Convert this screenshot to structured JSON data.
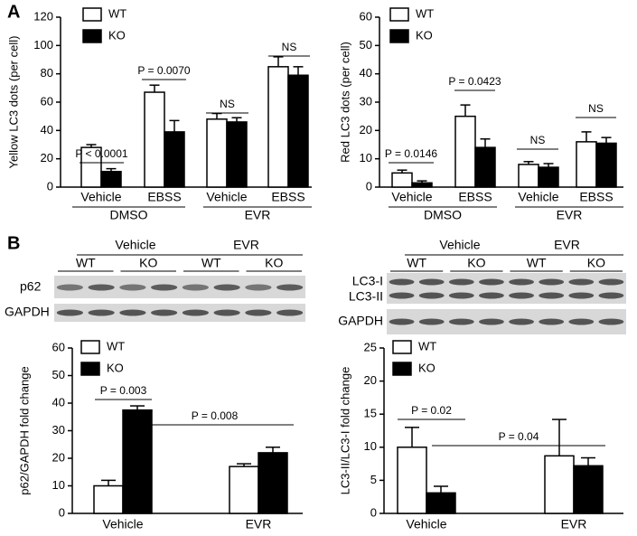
{
  "panel_labels": [
    "A",
    "B"
  ],
  "chart_data": [
    {
      "type": "bar",
      "ylabel": "Yellow LC3 dots (per cell)",
      "categories": [
        "Vehicle",
        "EBSS",
        "Vehicle",
        "EBSS"
      ],
      "groups": [
        "DMSO",
        "EVR"
      ],
      "ylim": [
        0,
        120
      ],
      "yticks": [
        0,
        20,
        40,
        60,
        80,
        100,
        120
      ],
      "series": [
        {
          "name": "WT",
          "color": "#ffffff",
          "values": [
            28,
            67,
            48,
            85
          ],
          "errors": [
            2,
            5,
            4,
            7
          ]
        },
        {
          "name": "KO",
          "color": "#000000",
          "values": [
            11,
            39,
            46,
            79
          ],
          "errors": [
            2,
            8,
            3,
            6
          ]
        }
      ],
      "annotations": [
        "P < 0.0001",
        "P = 0.0070",
        "NS",
        "NS"
      ]
    },
    {
      "type": "bar",
      "ylabel": "Red LC3 dots (per cell)",
      "categories": [
        "Vehicle",
        "EBSS",
        "Vehicle",
        "EBSS"
      ],
      "groups": [
        "DMSO",
        "EVR"
      ],
      "ylim": [
        0,
        60
      ],
      "yticks": [
        0,
        10,
        20,
        30,
        40,
        50,
        60
      ],
      "series": [
        {
          "name": "WT",
          "color": "#ffffff",
          "values": [
            5,
            25,
            8,
            16
          ],
          "errors": [
            1,
            4,
            1,
            3.5
          ]
        },
        {
          "name": "KO",
          "color": "#000000",
          "values": [
            1.5,
            14,
            7,
            15.5
          ],
          "errors": [
            0.7,
            3,
            1.3,
            2
          ]
        }
      ],
      "annotations": [
        "P = 0.0146",
        "P = 0.0423",
        "NS",
        "NS"
      ]
    },
    {
      "type": "bar",
      "ylabel": "p62/GAPDH fold change",
      "categories": [
        "Vehicle",
        "EVR"
      ],
      "ylim": [
        0,
        60
      ],
      "yticks": [
        0,
        10,
        20,
        30,
        40,
        50,
        60
      ],
      "series": [
        {
          "name": "WT",
          "color": "#ffffff",
          "values": [
            10,
            17
          ],
          "errors": [
            2,
            1
          ]
        },
        {
          "name": "KO",
          "color": "#000000",
          "values": [
            37.5,
            22
          ],
          "errors": [
            1.5,
            2
          ]
        }
      ],
      "annotations": [
        "P = 0.003",
        "P = 0.008"
      ]
    },
    {
      "type": "bar",
      "ylabel": "LC3-II/LC3-I fold change",
      "categories": [
        "Vehicle",
        "EVR"
      ],
      "ylim": [
        0,
        25
      ],
      "yticks": [
        0,
        5,
        10,
        15,
        20,
        25
      ],
      "series": [
        {
          "name": "WT",
          "color": "#ffffff",
          "values": [
            10,
            8.7
          ],
          "errors": [
            3,
            5.5
          ]
        },
        {
          "name": "KO",
          "color": "#000000",
          "values": [
            3.1,
            7.2
          ],
          "errors": [
            1,
            1.2
          ]
        }
      ],
      "annotations": [
        "P = 0.02",
        "P = 0.04"
      ]
    }
  ],
  "blots": [
    {
      "groups": [
        "Vehicle",
        "EVR"
      ],
      "lanes": [
        "WT",
        "KO",
        "WT",
        "KO"
      ],
      "rows": [
        "p62",
        "GAPDH"
      ]
    },
    {
      "groups": [
        "Vehicle",
        "EVR"
      ],
      "lanes": [
        "WT",
        "KO",
        "WT",
        "KO"
      ],
      "rows": [
        "LC3-I",
        "LC3-II",
        "GAPDH"
      ]
    }
  ]
}
